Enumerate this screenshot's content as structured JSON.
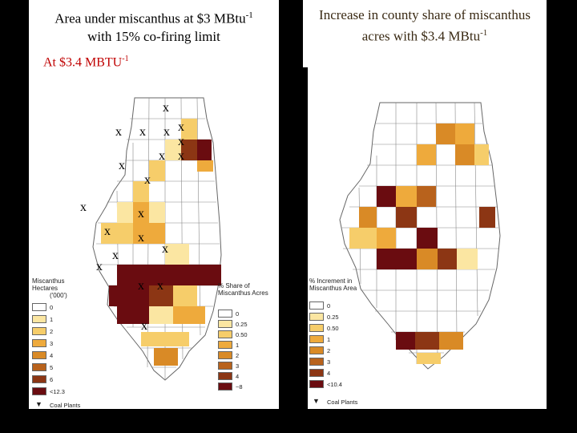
{
  "left_title_line1": "Area under miscanthus at $3 MBtu",
  "left_title_sup": "-1",
  "left_title_line2": "with 15% co-firing limit",
  "left_subtitle": "At $3.4 MBTU",
  "left_subtitle_sup": "-1",
  "right_title_line1": "Increase in county share of  miscanthus",
  "right_title_line2": "acres with $3.4 MBtu",
  "right_title_sup": "-1",
  "x_mark": "x",
  "legend_hectares": {
    "title_line1": "Miscanthus Hectares",
    "title_line2": "('000')",
    "items": [
      {
        "label": "0",
        "color": "#ffffff"
      },
      {
        "label": "1",
        "color": "#fbe6a2"
      },
      {
        "label": "2",
        "color": "#f6cd6a"
      },
      {
        "label": "3",
        "color": "#eeaa3c"
      },
      {
        "label": "4",
        "color": "#d98a26"
      },
      {
        "label": "5",
        "color": "#b8621c"
      },
      {
        "label": "6",
        "color": "#8c3614"
      },
      {
        "label": "<12.3",
        "color": "#6a0c10"
      }
    ],
    "coal_label": "Coal Plants"
  },
  "legend_share": {
    "title_line1": "% Share of",
    "title_line2": "Miscanthus Acres",
    "items": [
      {
        "label": "0",
        "color": "#ffffff"
      },
      {
        "label": "0.25",
        "color": "#fbe6a2"
      },
      {
        "label": "0.50",
        "color": "#f6cd6a"
      },
      {
        "label": "1",
        "color": "#eeaa3c"
      },
      {
        "label": "2",
        "color": "#d98a26"
      },
      {
        "label": "3",
        "color": "#b8621c"
      },
      {
        "label": "4",
        "color": "#8c3614"
      },
      {
        "label": "~8",
        "color": "#6a0c10"
      }
    ]
  },
  "legend_increment": {
    "title_line1": "% Increment in",
    "title_line2": "Miscanthus Area",
    "items": [
      {
        "label": "0",
        "color": "#ffffff"
      },
      {
        "label": "0.25",
        "color": "#fbe6a2"
      },
      {
        "label": "0.50",
        "color": "#f6cd6a"
      },
      {
        "label": "1",
        "color": "#eeaa3c"
      },
      {
        "label": "2",
        "color": "#d98a26"
      },
      {
        "label": "3",
        "color": "#b8621c"
      },
      {
        "label": "4",
        "color": "#8c3614"
      },
      {
        "label": "<10.4",
        "color": "#6a0c10"
      }
    ],
    "coal_label": "Coal Plants"
  },
  "colors": {
    "boundary": "#666666",
    "pale": "#fbe6a2",
    "light": "#f6cd6a",
    "mid": "#eeaa3c",
    "orange": "#d98a26",
    "dark": "#8c3614",
    "darkest": "#6a0c10"
  }
}
